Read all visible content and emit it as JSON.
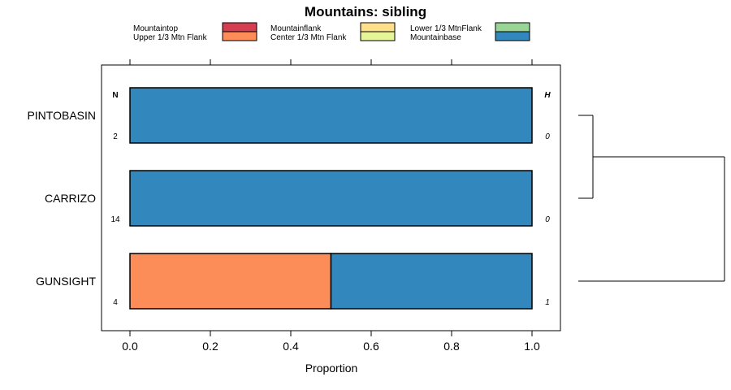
{
  "chart_data": {
    "type": "bar",
    "orientation": "horizontal",
    "stacked": true,
    "title": "Mountains: sibling",
    "xlabel": "Proportion",
    "ylabel": "",
    "xlim": [
      -0.07,
      1.07
    ],
    "xticks": [
      0.0,
      0.2,
      0.4,
      0.6,
      0.8,
      1.0
    ],
    "xtick_labels": [
      "0.0",
      "0.2",
      "0.4",
      "0.6",
      "0.8",
      "1.0"
    ],
    "legend": [
      {
        "label": "Mountaintop",
        "color": "#d53e4f"
      },
      {
        "label": "Upper 1/3 Mtn Flank",
        "color": "#fc8d59"
      },
      {
        "label": "Mountainflank",
        "color": "#fee08b"
      },
      {
        "label": "Center 1/3 Mtn Flank",
        "color": "#e6f598"
      },
      {
        "label": "Lower 1/3 MtnFlank",
        "color": "#99d594"
      },
      {
        "label": "Mountainbase",
        "color": "#3288bd"
      }
    ],
    "categories": [
      "PINTOBASIN",
      "CARRIZO",
      "GUNSIGHT"
    ],
    "series": [
      {
        "name": "Mountaintop",
        "values": [
          0,
          0,
          0
        ]
      },
      {
        "name": "Upper 1/3 Mtn Flank",
        "values": [
          0,
          0,
          0.5
        ]
      },
      {
        "name": "Mountainflank",
        "values": [
          0,
          0,
          0
        ]
      },
      {
        "name": "Center 1/3 Mtn Flank",
        "values": [
          0,
          0,
          0
        ]
      },
      {
        "name": "Lower 1/3 MtnFlank",
        "values": [
          0,
          0,
          0
        ]
      },
      {
        "name": "Mountainbase",
        "values": [
          1,
          1,
          0.5
        ]
      }
    ],
    "n_header": "N",
    "n_values": [
      "2",
      "14",
      "4"
    ],
    "h_header": "H",
    "h_values": [
      "0",
      "0",
      "1"
    ],
    "dendrogram": {
      "merges": [
        {
          "left": "PINTOBASIN",
          "right": "CARRIZO",
          "height": 0.1
        },
        {
          "left": "PINTOBASIN+CARRIZO",
          "right": "GUNSIGHT",
          "height": 1.0
        }
      ]
    }
  }
}
